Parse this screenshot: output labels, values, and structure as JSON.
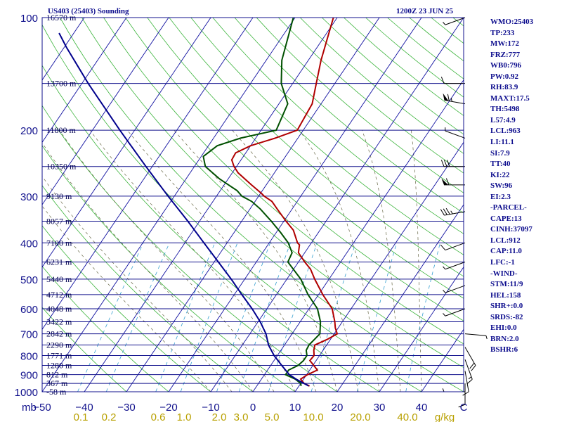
{
  "header": {
    "station_title": "US403 (25403) Sounding",
    "time_title": "1200Z 23 JUN 25"
  },
  "indices": [
    "WMO:25403",
    "TP:233",
    "MW:172",
    "FRZ:777",
    "WB0:796",
    "PW:0.92",
    "RH:83.9",
    "MAXT:17.5",
    "TH:5498",
    "L57:4.9",
    "LCL:963",
    "LI:11.1",
    "SI:7.9",
    "TT:40",
    "KI:22",
    "SW:96",
    "EI:2.3",
    "-PARCEL-",
    "CAPE:13",
    "CINH:37097",
    "LCL:912",
    "CAP:11.0",
    "LFC:-1",
    "-WIND-",
    "STM:11/9",
    "HEL:158",
    "SHR+:0.0",
    "SRDS:-82",
    "EHI:0.0",
    "BRN:2.0",
    "BSHR:6"
  ],
  "chart_data": {
    "type": "line",
    "diagram": "skew-T log-p",
    "pressure_axis": {
      "unit": "mb",
      "range": [
        1000,
        100
      ],
      "scale": "log",
      "ticks": [
        100,
        200,
        300,
        400,
        500,
        600,
        700,
        800,
        900,
        1000
      ]
    },
    "temperature_axis": {
      "unit_label": "C",
      "range": [
        -50,
        50
      ],
      "ticks": [
        "−50",
        "−40",
        "−30",
        "−20",
        "−10",
        "0",
        "10",
        "20",
        "30",
        "40"
      ]
    },
    "mixing_ratio_axis": {
      "unit_label": "g/kg",
      "ticks": [
        "0.1",
        "0.2",
        "0.6",
        "1.0",
        "2.0",
        "3.0",
        "5.0",
        "10.0",
        "20.0",
        "40.0"
      ]
    },
    "height_labels": [
      {
        "p": 100,
        "label": "16570 m"
      },
      {
        "p": 150,
        "label": "13700 m"
      },
      {
        "p": 200,
        "label": "11800 m"
      },
      {
        "p": 250,
        "label": "10350 m"
      },
      {
        "p": 300,
        "label": "9130 m"
      },
      {
        "p": 350,
        "label": "8057 m"
      },
      {
        "p": 400,
        "label": "7100 m"
      },
      {
        "p": 450,
        "label": "6231 m"
      },
      {
        "p": 500,
        "label": "5440 m"
      },
      {
        "p": 550,
        "label": "4712 m"
      },
      {
        "p": 600,
        "label": "4048 m"
      },
      {
        "p": 650,
        "label": "3422 m"
      },
      {
        "p": 700,
        "label": "2842 m"
      },
      {
        "p": 750,
        "label": "2290 m"
      },
      {
        "p": 800,
        "label": "1771 m"
      },
      {
        "p": 850,
        "label": "1280 m"
      },
      {
        "p": 900,
        "label": "812 m"
      },
      {
        "p": 950,
        "label": "367 m"
      },
      {
        "p": 1000,
        "label": "-58 m"
      }
    ],
    "series": [
      {
        "key": "temperature",
        "color": "#b00000",
        "points": [
          [
            965,
            12.5
          ],
          [
            950,
            10.8
          ],
          [
            925,
            9.3
          ],
          [
            900,
            10.2
          ],
          [
            875,
            11.8
          ],
          [
            850,
            10.2
          ],
          [
            825,
            8.5
          ],
          [
            800,
            8.7
          ],
          [
            775,
            7.8
          ],
          [
            750,
            7.2
          ],
          [
            725,
            9.2
          ],
          [
            700,
            10.7
          ],
          [
            675,
            9.3
          ],
          [
            650,
            8.2
          ],
          [
            600,
            5.5
          ],
          [
            550,
            1.0
          ],
          [
            500,
            -3.4
          ],
          [
            470,
            -6.0
          ],
          [
            450,
            -8.5
          ],
          [
            425,
            -11.5
          ],
          [
            405,
            -12.5
          ],
          [
            400,
            -13.3
          ],
          [
            370,
            -16.3
          ],
          [
            350,
            -19.5
          ],
          [
            325,
            -23.5
          ],
          [
            310,
            -26.0
          ],
          [
            300,
            -28.7
          ],
          [
            295,
            -29.8
          ],
          [
            280,
            -33.5
          ],
          [
            260,
            -38.6
          ],
          [
            250,
            -40.6
          ],
          [
            240,
            -42.2
          ],
          [
            230,
            -42.4
          ],
          [
            220,
            -40.0
          ],
          [
            210,
            -35.4
          ],
          [
            200,
            -31.4
          ],
          [
            170,
            -32.1
          ],
          [
            150,
            -34.4
          ],
          [
            130,
            -37.0
          ],
          [
            100,
            -40.9
          ]
        ]
      },
      {
        "key": "dewpoint",
        "color": "#005000",
        "points": [
          [
            965,
            10.5
          ],
          [
            950,
            10.0
          ],
          [
            925,
            8.0
          ],
          [
            900,
            5.0
          ],
          [
            875,
            5.0
          ],
          [
            850,
            6.5
          ],
          [
            825,
            7.0
          ],
          [
            800,
            7.0
          ],
          [
            775,
            6.0
          ],
          [
            750,
            5.8
          ],
          [
            725,
            6.2
          ],
          [
            700,
            6.6
          ],
          [
            650,
            4.8
          ],
          [
            600,
            2.0
          ],
          [
            550,
            -2.5
          ],
          [
            500,
            -6.7
          ],
          [
            450,
            -12.5
          ],
          [
            425,
            -13.0
          ],
          [
            400,
            -15.5
          ],
          [
            375,
            -19.0
          ],
          [
            350,
            -23.0
          ],
          [
            325,
            -27.5
          ],
          [
            310,
            -30.8
          ],
          [
            300,
            -34.0
          ],
          [
            290,
            -36.0
          ],
          [
            270,
            -42.0
          ],
          [
            250,
            -47.4
          ],
          [
            235,
            -49.5
          ],
          [
            220,
            -47.9
          ],
          [
            210,
            -43.6
          ],
          [
            200,
            -36.4
          ],
          [
            170,
            -37.9
          ],
          [
            150,
            -42.7
          ],
          [
            130,
            -46.3
          ],
          [
            100,
            -50.4
          ]
        ]
      },
      {
        "key": "parcel",
        "color": "#00008c",
        "points": [
          [
            965,
            12.3
          ],
          [
            950,
            10.8
          ],
          [
            925,
            8.2
          ],
          [
            900,
            5.9
          ],
          [
            850,
            2.6
          ],
          [
            800,
            -0.8
          ],
          [
            750,
            -3.8
          ],
          [
            700,
            -6.2
          ],
          [
            650,
            -9.5
          ],
          [
            600,
            -13.5
          ],
          [
            550,
            -18.2
          ],
          [
            500,
            -23.2
          ],
          [
            450,
            -29.0
          ],
          [
            400,
            -35.5
          ],
          [
            350,
            -42.8
          ],
          [
            300,
            -51.5
          ],
          [
            250,
            -61.5
          ],
          [
            200,
            -73.5
          ],
          [
            150,
            -88.5
          ],
          [
            120,
            -99.5
          ],
          [
            110,
            -103.5
          ]
        ]
      }
    ],
    "winds": [
      {
        "p": 100,
        "dir": 250,
        "spd": 5
      },
      {
        "p": 150,
        "dir": 270,
        "spd": 10
      },
      {
        "p": 170,
        "dir": 280,
        "spd": 65
      },
      {
        "p": 210,
        "dir": 290,
        "spd": 5
      },
      {
        "p": 250,
        "dir": 270,
        "spd": 30
      },
      {
        "p": 280,
        "dir": 270,
        "spd": 60
      },
      {
        "p": 330,
        "dir": 260,
        "spd": 35
      },
      {
        "p": 400,
        "dir": 250,
        "spd": 10
      },
      {
        "p": 450,
        "dir": 250,
        "spd": 5
      },
      {
        "p": 520,
        "dir": 250,
        "spd": 5
      },
      {
        "p": 600,
        "dir": 250,
        "spd": 5
      },
      {
        "p": 700,
        "dir": 95,
        "spd": 5
      },
      {
        "p": 760,
        "dir": 150,
        "spd": 20
      },
      {
        "p": 820,
        "dir": 160,
        "spd": 15
      },
      {
        "p": 880,
        "dir": 170,
        "spd": 10
      },
      {
        "p": 950,
        "dir": 180,
        "spd": 10
      },
      {
        "p": 1000,
        "dir": 270,
        "spd": 5
      }
    ],
    "grid": true
  }
}
